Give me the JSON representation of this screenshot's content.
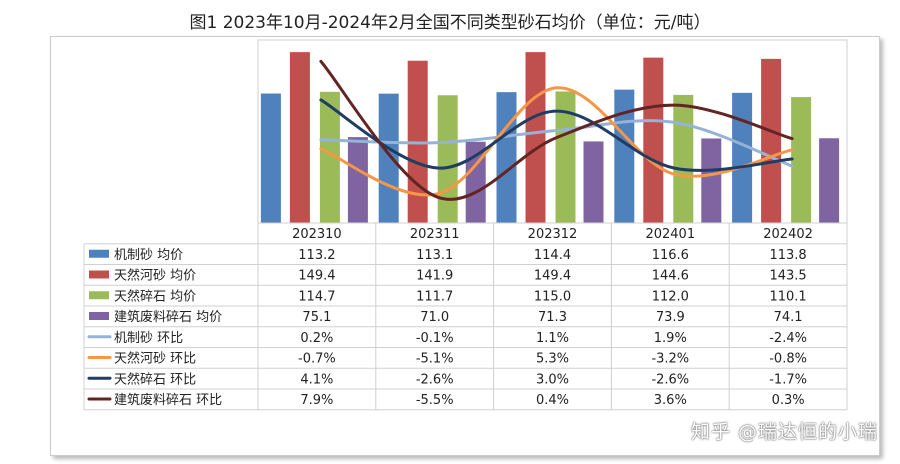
{
  "chart_data": {
    "type": "bar+line",
    "title": "图1 2023年10月-2024年2月全国不同类型砂石均价（单位：元/吨）",
    "categories": [
      "202310",
      "202311",
      "202312",
      "202401",
      "202402"
    ],
    "bar_series": [
      {
        "name": "机制砂 均价",
        "color": "#4F81BD",
        "values": [
          113.2,
          113.1,
          114.4,
          116.6,
          113.8
        ],
        "labels": [
          "113.2",
          "113.1",
          "114.4",
          "116.6",
          "113.8"
        ]
      },
      {
        "name": "天然河砂 均价",
        "color": "#C0504D",
        "values": [
          149.4,
          141.9,
          149.4,
          144.6,
          143.5
        ],
        "labels": [
          "149.4",
          "141.9",
          "149.4",
          "144.6",
          "143.5"
        ]
      },
      {
        "name": "天然碎石 均价",
        "color": "#9BBB59",
        "values": [
          114.7,
          111.7,
          115.0,
          112.0,
          110.1
        ],
        "labels": [
          "114.7",
          "111.7",
          "115.0",
          "112.0",
          "110.1"
        ]
      },
      {
        "name": "建筑废料碎石 均价",
        "color": "#8064A2",
        "values": [
          75.1,
          71.0,
          71.3,
          73.9,
          74.1
        ],
        "labels": [
          "75.1",
          "71.0",
          "71.3",
          "73.9",
          "74.1"
        ]
      }
    ],
    "line_series": [
      {
        "name": "机制砂 环比",
        "color": "#95B3D7",
        "values": [
          0.2,
          -0.1,
          1.1,
          1.9,
          -2.4
        ],
        "labels": [
          "0.2%",
          "-0.1%",
          "1.1%",
          "1.9%",
          "-2.4%"
        ]
      },
      {
        "name": "天然河砂 环比",
        "color": "#F79646",
        "values": [
          -0.7,
          -5.1,
          5.3,
          -3.2,
          -0.8
        ],
        "labels": [
          "-0.7%",
          "-5.1%",
          "5.3%",
          "-3.2%",
          "-0.8%"
        ]
      },
      {
        "name": "天然碎石 环比",
        "color": "#1F3D63",
        "values": [
          4.1,
          -2.6,
          3.0,
          -2.6,
          -1.7
        ],
        "labels": [
          "4.1%",
          "-2.6%",
          "3.0%",
          "-2.6%",
          "-1.7%"
        ]
      },
      {
        "name": "建筑废料碎石 环比",
        "color": "#632523",
        "values": [
          7.9,
          -5.5,
          0.4,
          3.6,
          0.3
        ],
        "labels": [
          "7.9%",
          "-5.5%",
          "0.4%",
          "3.6%",
          "0.3%"
        ]
      }
    ],
    "y_primary_range": [
      0,
      160
    ],
    "y_secondary_range": [
      -8,
      10
    ],
    "smooth_lines": true,
    "legend": "data-table"
  },
  "watermark": "知乎 @瑞达恒的小瑞"
}
